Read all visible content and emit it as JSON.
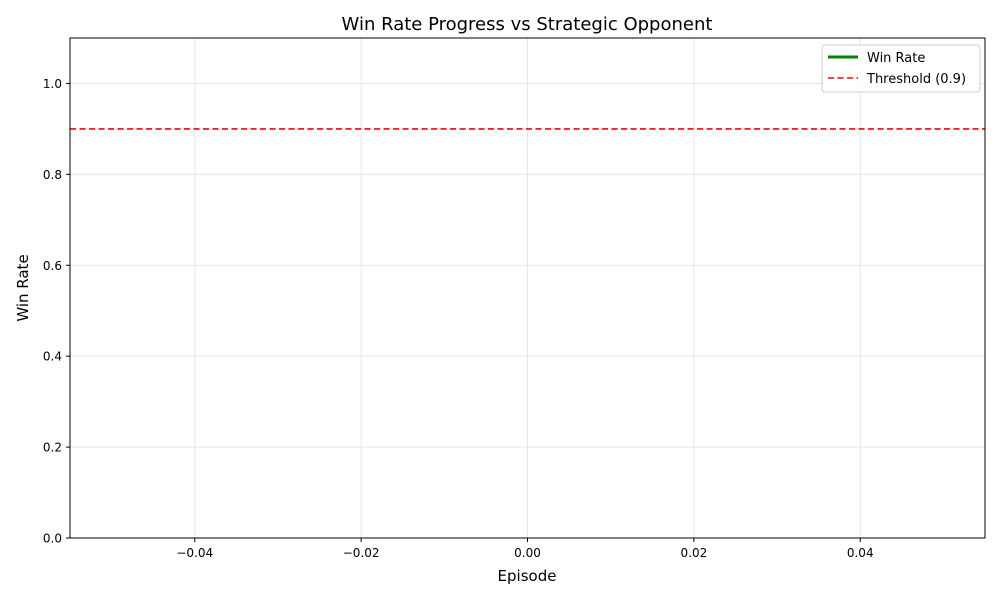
{
  "chart_data": {
    "type": "line",
    "title": "Win Rate Progress vs Strategic Opponent",
    "xlabel": "Episode",
    "ylabel": "Win Rate",
    "xlim": [
      -0.055,
      0.055
    ],
    "ylim": [
      0,
      1.1
    ],
    "xticks": [
      -0.04,
      -0.02,
      0.0,
      0.02,
      0.04
    ],
    "xtick_labels": [
      "−0.04",
      "−0.02",
      "0.00",
      "0.02",
      "0.04"
    ],
    "yticks": [
      0.0,
      0.2,
      0.4,
      0.6,
      0.8,
      1.0
    ],
    "ytick_labels": [
      "0.0",
      "0.2",
      "0.4",
      "0.6",
      "0.8",
      "1.0"
    ],
    "grid": true,
    "legend_position": "top-right",
    "series": [
      {
        "name": "Win Rate",
        "x": [],
        "y": [],
        "color": "#008000",
        "style": "solid"
      }
    ],
    "reference_lines": [
      {
        "name": "Threshold (0.9)",
        "orientation": "horizontal",
        "value": 0.9,
        "color": "#ff0000",
        "style": "dashed"
      }
    ]
  }
}
